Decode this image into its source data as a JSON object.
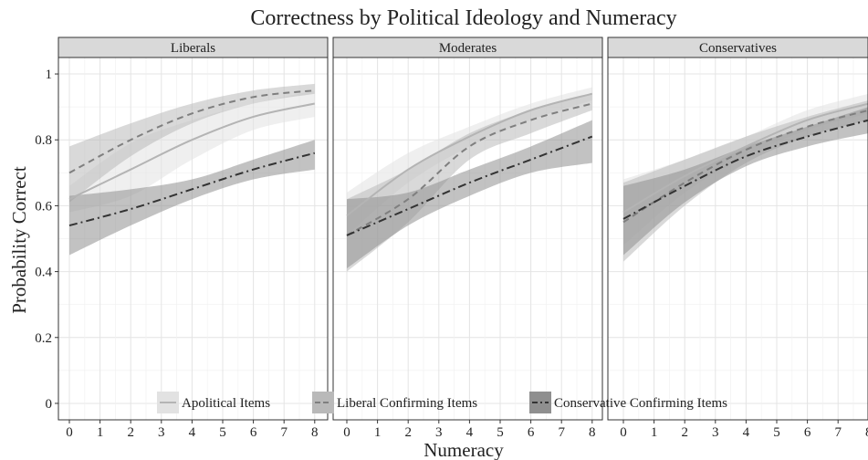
{
  "chart_data": {
    "type": "line",
    "title": "Correctness by Political Ideology and Numeracy",
    "xlabel": "Numeracy",
    "ylabel": "Probability Correct",
    "x_ticks": [
      0,
      1,
      2,
      3,
      4,
      5,
      6,
      7,
      8
    ],
    "y_ticks": [
      0,
      0.2,
      0.4,
      0.6,
      0.8,
      1
    ],
    "y_tick_labels": [
      "0",
      "0.2",
      "0.4",
      "0.6",
      "0.8",
      "1"
    ],
    "xlim": [
      -0.3,
      8.3
    ],
    "ylim": [
      -0.05,
      1.05
    ],
    "grid": true,
    "legend_position": "bottom",
    "series_styles": [
      {
        "name": "Apolitical Items",
        "line_color": "#b4b4b4",
        "ribbon_color": "#e2e2e2",
        "dash": "solid"
      },
      {
        "name": "Liberal Confirming Items",
        "line_color": "#7f7f7f",
        "ribbon_color": "#b9b9b9",
        "dash": "dashed"
      },
      {
        "name": "Conservative Confirming Items",
        "line_color": "#333333",
        "ribbon_color": "#8f8f8f",
        "dash": "dotdash"
      }
    ],
    "panels": [
      {
        "label": "Liberals",
        "series": [
          {
            "name": "Apolitical Items",
            "x": [
              0,
              2,
              4,
              6,
              8
            ],
            "y": [
              0.62,
              0.71,
              0.8,
              0.87,
              0.91
            ],
            "lower": [
              0.58,
              0.63,
              0.74,
              0.83,
              0.87
            ],
            "upper": [
              0.66,
              0.79,
              0.86,
              0.91,
              0.95
            ]
          },
          {
            "name": "Liberal Confirming Items",
            "x": [
              0,
              2,
              4,
              6,
              8
            ],
            "y": [
              0.7,
              0.8,
              0.88,
              0.93,
              0.95
            ],
            "lower": [
              0.61,
              0.75,
              0.85,
              0.91,
              0.94
            ],
            "upper": [
              0.78,
              0.85,
              0.91,
              0.95,
              0.97
            ]
          },
          {
            "name": "Conservative Confirming Items",
            "x": [
              0,
              2,
              4,
              6,
              8
            ],
            "y": [
              0.54,
              0.59,
              0.65,
              0.71,
              0.76
            ],
            "lower": [
              0.45,
              0.54,
              0.62,
              0.68,
              0.71
            ],
            "upper": [
              0.63,
              0.65,
              0.68,
              0.74,
              0.8
            ]
          }
        ]
      },
      {
        "label": "Moderates",
        "series": [
          {
            "name": "Apolitical Items",
            "x": [
              0,
              2,
              4,
              6,
              8
            ],
            "y": [
              0.57,
              0.71,
              0.81,
              0.89,
              0.94
            ],
            "lower": [
              0.51,
              0.67,
              0.78,
              0.86,
              0.92
            ],
            "upper": [
              0.64,
              0.76,
              0.84,
              0.91,
              0.96
            ]
          },
          {
            "name": "Liberal Confirming Items",
            "x": [
              0,
              2,
              4,
              6,
              8
            ],
            "y": [
              0.51,
              0.62,
              0.78,
              0.86,
              0.91
            ],
            "lower": [
              0.4,
              0.55,
              0.74,
              0.82,
              0.89
            ],
            "upper": [
              0.62,
              0.71,
              0.82,
              0.89,
              0.94
            ]
          },
          {
            "name": "Conservative Confirming Items",
            "x": [
              0,
              2,
              4,
              6,
              8
            ],
            "y": [
              0.51,
              0.59,
              0.67,
              0.74,
              0.81
            ],
            "lower": [
              0.41,
              0.54,
              0.63,
              0.7,
              0.73
            ],
            "upper": [
              0.62,
              0.64,
              0.71,
              0.78,
              0.86
            ]
          }
        ]
      },
      {
        "label": "Conservatives",
        "series": [
          {
            "name": "Apolitical Items",
            "x": [
              0,
              2,
              4,
              6,
              8
            ],
            "y": [
              0.58,
              0.69,
              0.78,
              0.86,
              0.91
            ],
            "lower": [
              0.48,
              0.64,
              0.75,
              0.83,
              0.88
            ],
            "upper": [
              0.68,
              0.74,
              0.81,
              0.89,
              0.94
            ]
          },
          {
            "name": "Liberal Confirming Items",
            "x": [
              0,
              2,
              4,
              6,
              8
            ],
            "y": [
              0.55,
              0.67,
              0.77,
              0.84,
              0.89
            ],
            "lower": [
              0.43,
              0.6,
              0.73,
              0.81,
              0.86
            ],
            "upper": [
              0.67,
              0.74,
              0.81,
              0.87,
              0.92
            ]
          },
          {
            "name": "Conservative Confirming Items",
            "x": [
              0,
              2,
              4,
              6,
              8
            ],
            "y": [
              0.56,
              0.66,
              0.75,
              0.81,
              0.86
            ],
            "lower": [
              0.45,
              0.61,
              0.72,
              0.78,
              0.82
            ],
            "upper": [
              0.66,
              0.71,
              0.78,
              0.84,
              0.9
            ]
          }
        ]
      }
    ]
  }
}
